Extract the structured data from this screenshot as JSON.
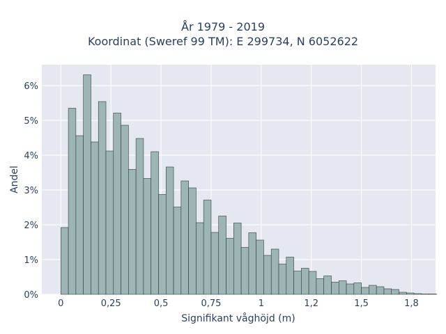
{
  "chart_data": {
    "type": "bar",
    "title_lines": [
      "År 1979 - 2019",
      "Koordinat (Sweref 99 TM): E 299734, N 6052622"
    ],
    "xlabel": "Signifikant våghöjd (m)",
    "ylabel": "Andel",
    "xlim": [
      -0.095,
      1.87
    ],
    "ylim": [
      0,
      0.066
    ],
    "bin_width": 0.0375,
    "x_start": 0,
    "x_ticks": [
      {
        "value": 0,
        "label": "0"
      },
      {
        "value": 0.25,
        "label": "0,25"
      },
      {
        "value": 0.5,
        "label": "0,5"
      },
      {
        "value": 0.75,
        "label": "0,75"
      },
      {
        "value": 1,
        "label": "1"
      },
      {
        "value": 1.25,
        "label": "1,2"
      },
      {
        "value": 1.5,
        "label": "1,5"
      },
      {
        "value": 1.75,
        "label": "1,8"
      }
    ],
    "y_ticks": [
      {
        "value": 0,
        "label": "0%"
      },
      {
        "value": 0.01,
        "label": "1%"
      },
      {
        "value": 0.02,
        "label": "2%"
      },
      {
        "value": 0.03,
        "label": "3%"
      },
      {
        "value": 0.04,
        "label": "4%"
      },
      {
        "value": 0.05,
        "label": "5%"
      },
      {
        "value": 0.06,
        "label": "6%"
      }
    ],
    "values": [
      0.0192,
      0.0535,
      0.0456,
      0.0631,
      0.0438,
      0.0554,
      0.0412,
      0.0521,
      0.0486,
      0.0359,
      0.0448,
      0.0333,
      0.041,
      0.0287,
      0.0366,
      0.0251,
      0.0326,
      0.0306,
      0.0206,
      0.0271,
      0.0178,
      0.0225,
      0.0161,
      0.0205,
      0.0135,
      0.0177,
      0.0156,
      0.0112,
      0.013,
      0.0087,
      0.0107,
      0.0067,
      0.0075,
      0.0066,
      0.0045,
      0.0053,
      0.0035,
      0.0039,
      0.003,
      0.0033,
      0.002,
      0.0026,
      0.0022,
      0.0016,
      0.0014,
      0.0006,
      0.0004,
      0.0002,
      0.0001,
      0.0001,
      0.0
    ],
    "colors": {
      "plot_background": "#e5e8f0",
      "bar_fill": "#9db5b5",
      "bar_stroke": "#2f3b3b",
      "grid": "#ffffff",
      "text": "#2a3f5f"
    },
    "grid": true
  }
}
